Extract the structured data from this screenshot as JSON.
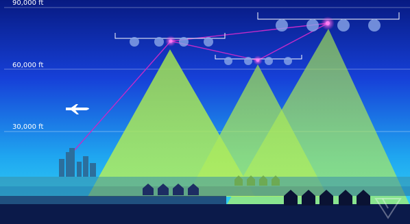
{
  "altitude_labels": {
    "top": "90,000 ft",
    "mid": "60,000 ft",
    "low": "30,000 ft"
  },
  "colors": {
    "sky_top": "#071a82",
    "sky_mid": "#1640d8",
    "sky_bottom": "#28d0f4",
    "beam_green": "#a6e85a",
    "link_magenta": "#c22bc8",
    "ground": "#0b1a4a",
    "house": "#1d2d63"
  },
  "icons": {
    "airplane": "airplane-icon",
    "house": "house-icon",
    "city": "city-skyline-icon",
    "watermark": "verge-logo-icon"
  }
}
